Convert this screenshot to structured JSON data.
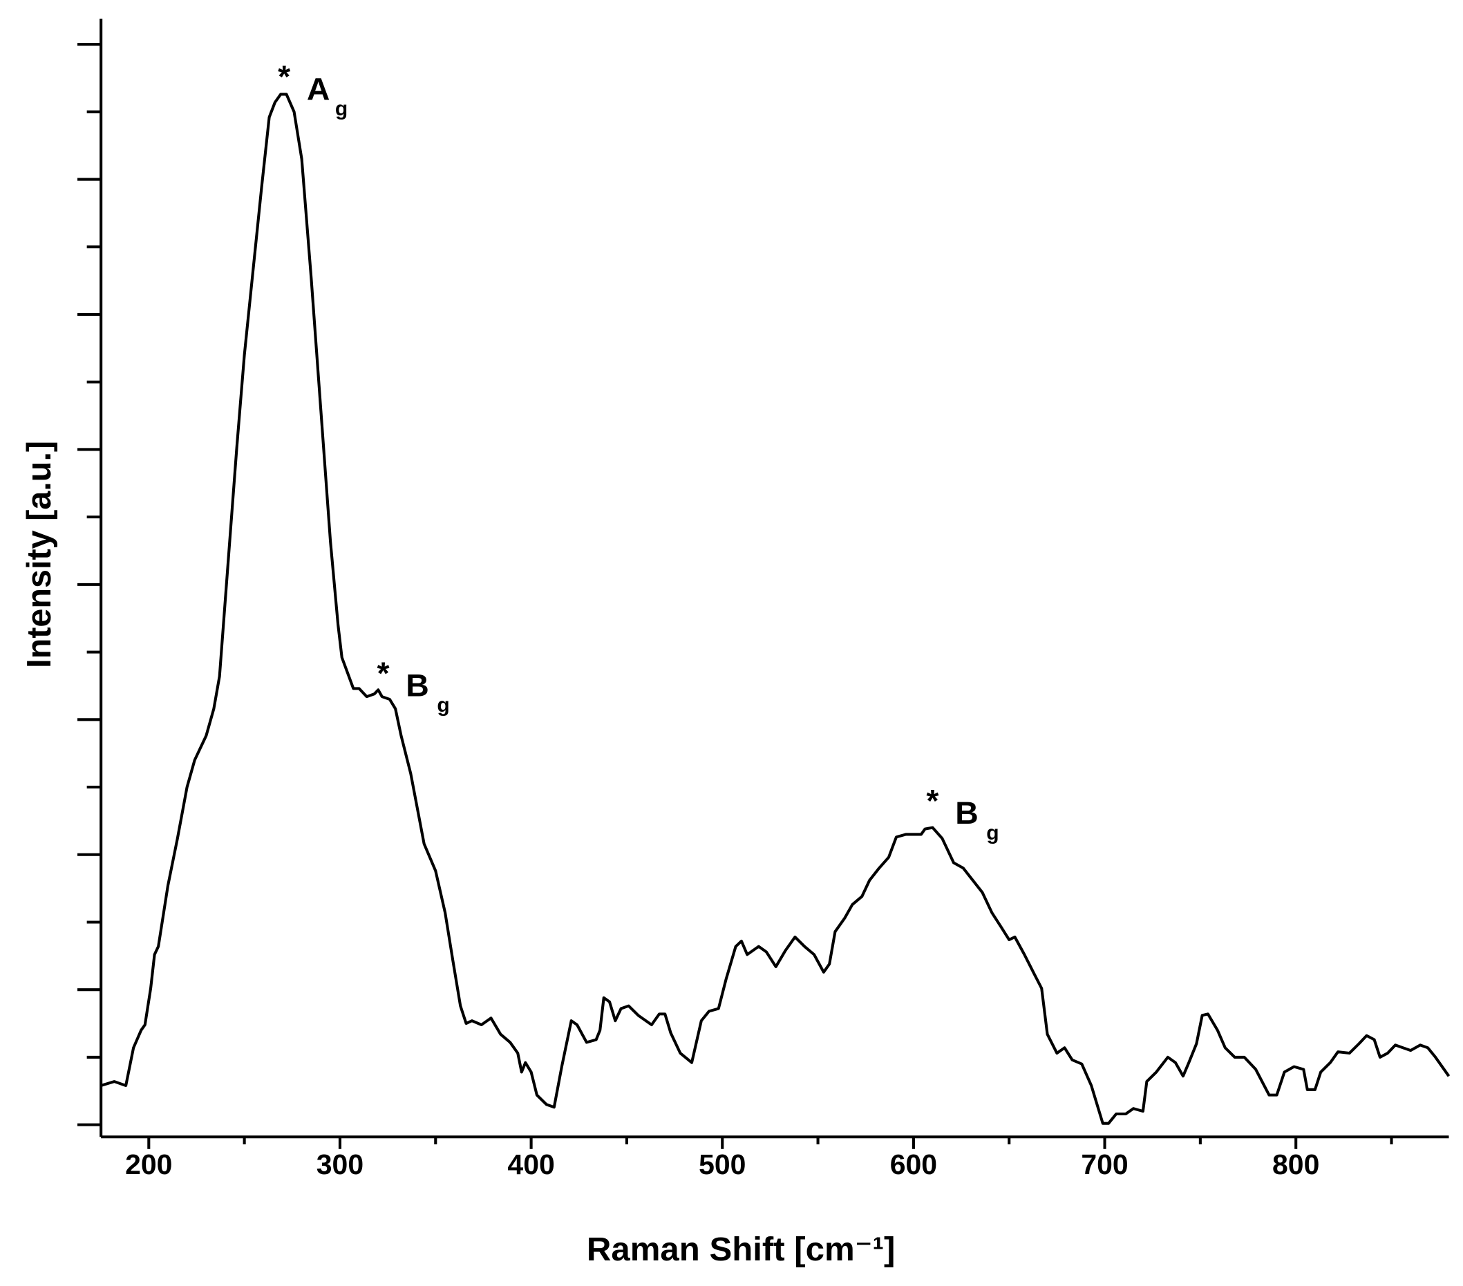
{
  "chart_data": {
    "type": "line",
    "xlabel": "Raman Shift [cm⁻¹]",
    "ylabel": "Intensity [a.u.]",
    "xlim": [
      175,
      880
    ],
    "xticks": [
      200,
      300,
      400,
      500,
      600,
      700,
      800
    ],
    "xminor_ticks": [
      250,
      350,
      450,
      550,
      650,
      750,
      850
    ],
    "ylim": [
      -0.09,
      8.19
    ],
    "yticks": [
      0,
      1,
      2,
      3,
      4,
      5,
      6,
      7,
      8
    ],
    "yminor_ticks": [
      0.5,
      1.5,
      2.5,
      3.5,
      4.5,
      5.5,
      6.5,
      7.5
    ],
    "ytick_labels": false,
    "grid": false,
    "annotations": [
      {
        "marker": "*",
        "label": "A",
        "subscript": "g"
      },
      {
        "marker": "*",
        "label": "B",
        "subscript": "g"
      },
      {
        "marker": "*",
        "label": "B",
        "subscript": "g"
      }
    ],
    "series": [
      {
        "color": "#000000",
        "x": [
          175,
          182,
          188,
          192,
          196,
          198,
          201,
          203,
          205,
          210,
          215,
          220,
          224,
          230,
          234,
          237,
          242,
          246,
          250,
          255,
          259,
          263,
          266,
          269,
          272,
          276,
          280,
          285,
          290,
          295,
          299,
          301,
          307,
          310,
          314,
          318,
          320,
          322,
          326,
          329,
          332,
          337,
          344,
          350,
          355,
          359,
          363,
          366,
          369,
          374,
          379,
          384,
          389,
          393,
          395,
          397,
          400,
          403,
          408,
          412,
          416,
          421,
          424,
          429,
          434,
          436,
          438,
          441,
          444,
          447,
          451,
          456,
          463,
          467,
          470,
          473,
          478,
          484,
          489,
          493,
          498,
          502,
          507,
          510,
          513,
          519,
          523,
          528,
          533,
          538,
          543,
          548,
          553,
          556,
          559,
          564,
          568,
          573,
          577,
          582,
          587,
          591,
          596,
          604,
          606,
          610,
          615,
          621,
          626,
          631,
          636,
          641,
          646,
          650,
          653,
          658,
          663,
          667,
          670,
          675,
          679,
          683,
          688,
          693,
          696,
          699,
          702,
          706,
          711,
          715,
          720,
          722,
          727,
          733,
          737,
          741,
          744,
          748,
          751,
          754,
          759,
          763,
          768,
          773,
          779,
          786,
          790,
          794,
          799,
          804,
          806,
          810,
          813,
          818,
          822,
          828,
          833,
          837,
          841,
          844,
          848,
          852,
          856,
          860,
          865,
          869,
          873,
          880
        ],
        "values": [
          0.29,
          0.32,
          0.29,
          0.57,
          0.7,
          0.74,
          1.01,
          1.26,
          1.32,
          1.77,
          2.12,
          2.5,
          2.7,
          2.88,
          3.08,
          3.32,
          4.26,
          5.01,
          5.7,
          6.39,
          6.94,
          7.46,
          7.57,
          7.63,
          7.63,
          7.5,
          7.15,
          6.26,
          5.29,
          4.32,
          3.7,
          3.46,
          3.23,
          3.23,
          3.17,
          3.19,
          3.22,
          3.17,
          3.15,
          3.08,
          2.88,
          2.6,
          2.08,
          1.88,
          1.57,
          1.22,
          0.88,
          0.75,
          0.77,
          0.74,
          0.79,
          0.67,
          0.61,
          0.53,
          0.39,
          0.46,
          0.39,
          0.22,
          0.15,
          0.13,
          0.43,
          0.77,
          0.74,
          0.61,
          0.63,
          0.7,
          0.94,
          0.91,
          0.77,
          0.86,
          0.88,
          0.81,
          0.74,
          0.82,
          0.82,
          0.68,
          0.53,
          0.46,
          0.77,
          0.84,
          0.86,
          1.08,
          1.32,
          1.36,
          1.26,
          1.32,
          1.28,
          1.17,
          1.29,
          1.39,
          1.32,
          1.26,
          1.13,
          1.19,
          1.43,
          1.53,
          1.63,
          1.69,
          1.81,
          1.9,
          1.98,
          2.13,
          2.15,
          2.15,
          2.19,
          2.2,
          2.12,
          1.94,
          1.9,
          1.81,
          1.72,
          1.57,
          1.46,
          1.37,
          1.39,
          1.26,
          1.12,
          1.01,
          0.67,
          0.53,
          0.57,
          0.48,
          0.45,
          0.29,
          0.15,
          0.01,
          0.01,
          0.08,
          0.08,
          0.12,
          0.1,
          0.32,
          0.39,
          0.5,
          0.46,
          0.36,
          0.46,
          0.6,
          0.81,
          0.82,
          0.7,
          0.57,
          0.5,
          0.5,
          0.41,
          0.22,
          0.22,
          0.39,
          0.43,
          0.41,
          0.26,
          0.26,
          0.39,
          0.46,
          0.54,
          0.53,
          0.6,
          0.66,
          0.63,
          0.5,
          0.53,
          0.59,
          0.57,
          0.55,
          0.59,
          0.57,
          0.5,
          0.36
        ]
      }
    ]
  }
}
